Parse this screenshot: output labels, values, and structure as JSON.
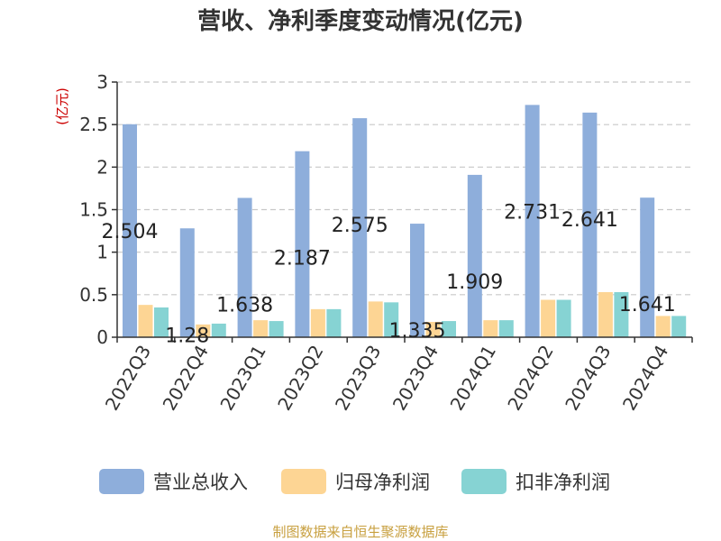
{
  "chart_data": {
    "type": "bar",
    "title": "营收、净利季度变动情况(亿元)",
    "ylabel": "(亿元)",
    "xlabel": "",
    "ylim": [
      0,
      3
    ],
    "yticks": [
      "0",
      "0.5",
      "1",
      "1.5",
      "2",
      "2.5",
      "3"
    ],
    "grid": true,
    "legend_position": "bottom",
    "categories": [
      "2022Q3",
      "2022Q4",
      "2023Q1",
      "2023Q2",
      "2023Q3",
      "2023Q4",
      "2024Q1",
      "2024Q2",
      "2024Q3",
      "2024Q4"
    ],
    "series": [
      {
        "name": "营业总收入",
        "color": "#8eaedb",
        "values": [
          2.504,
          1.28,
          1.638,
          2.187,
          2.575,
          1.335,
          1.909,
          2.731,
          2.641,
          1.641
        ]
      },
      {
        "name": "归母净利润",
        "color": "#fdd594",
        "values": [
          0.38,
          0.15,
          0.2,
          0.33,
          0.42,
          0.18,
          0.2,
          0.44,
          0.53,
          0.25
        ]
      },
      {
        "name": "扣非净利润",
        "color": "#86d3d3",
        "values": [
          0.35,
          0.16,
          0.19,
          0.33,
          0.41,
          0.19,
          0.2,
          0.44,
          0.53,
          0.25
        ]
      }
    ],
    "data_labels": [
      "2.504",
      "1.28",
      "1.638",
      "2.187",
      "2.575",
      "1.335",
      "1.909",
      "2.731",
      "2.641",
      "1.641"
    ]
  },
  "footer": {
    "source": "制图数据来自恒生聚源数据库"
  }
}
